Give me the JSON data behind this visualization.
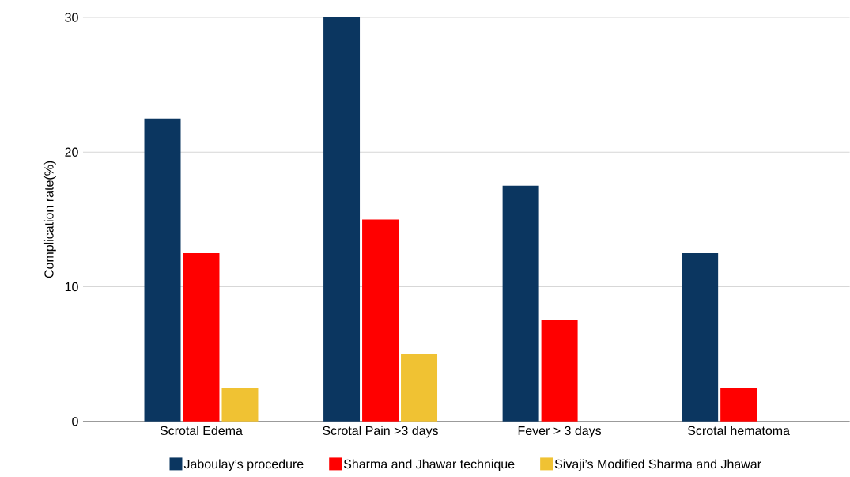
{
  "chart_data": {
    "type": "bar",
    "ylabel": "Complication rate(%)",
    "categories": [
      "Scrotal Edema",
      "Scrotal Pain >3 days",
      "Fever > 3 days",
      "Scrotal hematoma"
    ],
    "series": [
      {
        "name": "Jaboulay’s procedure",
        "color": "#0b3660",
        "values": [
          22.5,
          30,
          17.5,
          12.5
        ]
      },
      {
        "name": "Sharma and Jhawar technique",
        "color": "#ff0000",
        "values": [
          12.5,
          15,
          7.5,
          2.5
        ]
      },
      {
        "name": "Sivaji’s Modified Sharma and Jhawar",
        "color": "#f0c233",
        "values": [
          2.5,
          5,
          0,
          0
        ]
      }
    ],
    "ylim": [
      0,
      30
    ],
    "yticks": [
      0,
      10,
      20,
      30
    ],
    "grid": "y",
    "legend": "bottom"
  }
}
